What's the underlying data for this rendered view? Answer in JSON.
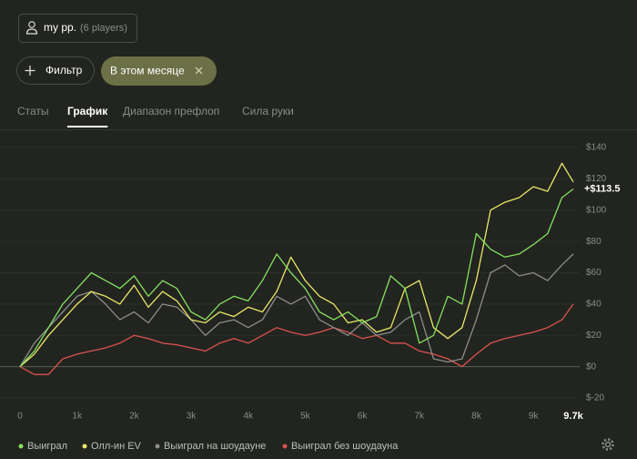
{
  "header": {
    "player": "my pp.",
    "players": "(6 players)"
  },
  "filters": {
    "add": "Фильтр",
    "chip": "В этом месяце"
  },
  "tabs": [
    "Статы",
    "График",
    "Диапазон префлоп",
    "Сила руки"
  ],
  "active_tab": 1,
  "chart_data": {
    "type": "line",
    "x": [
      0,
      250,
      500,
      750,
      1000,
      1250,
      1500,
      1750,
      2000,
      2250,
      2500,
      2750,
      3000,
      3250,
      3500,
      3750,
      4000,
      4250,
      4500,
      4750,
      5000,
      5250,
      5500,
      5750,
      6000,
      6250,
      6500,
      6750,
      7000,
      7250,
      7500,
      7750,
      8000,
      8250,
      8500,
      8750,
      9000,
      9250,
      9500,
      9700
    ],
    "series": [
      {
        "name": "Выиграл",
        "color": "#86e062",
        "values": [
          0,
          10,
          25,
          40,
          50,
          60,
          55,
          50,
          58,
          45,
          55,
          50,
          35,
          30,
          40,
          45,
          42,
          55,
          72,
          60,
          50,
          35,
          30,
          35,
          28,
          32,
          58,
          50,
          15,
          20,
          45,
          40,
          85,
          75,
          70,
          72,
          78,
          85,
          108,
          113.5
        ]
      },
      {
        "name": "Олл-ин EV",
        "color": "#e9e86a",
        "values": [
          0,
          8,
          20,
          30,
          40,
          48,
          45,
          40,
          52,
          38,
          48,
          42,
          30,
          28,
          35,
          32,
          38,
          35,
          48,
          70,
          55,
          45,
          40,
          28,
          30,
          22,
          25,
          50,
          55,
          25,
          18,
          25,
          55,
          100,
          105,
          108,
          115,
          112,
          130,
          118
        ]
      },
      {
        "name": "Выиграл на шоудауне",
        "color": "#8c8c8c",
        "values": [
          0,
          15,
          25,
          35,
          45,
          48,
          40,
          30,
          35,
          28,
          40,
          38,
          30,
          20,
          28,
          30,
          25,
          30,
          45,
          40,
          45,
          30,
          25,
          20,
          28,
          20,
          22,
          30,
          35,
          5,
          3,
          5,
          30,
          60,
          65,
          58,
          60,
          55,
          65,
          72
        ]
      },
      {
        "name": "Выиграл без шоудауна",
        "color": "#d9534f",
        "values": [
          0,
          -5,
          -5,
          5,
          8,
          10,
          12,
          15,
          20,
          18,
          15,
          14,
          12,
          10,
          15,
          18,
          15,
          20,
          25,
          22,
          20,
          22,
          25,
          22,
          18,
          20,
          15,
          15,
          10,
          8,
          5,
          0,
          8,
          15,
          18,
          20,
          22,
          25,
          30,
          40
        ]
      }
    ],
    "annotation": "+$113.5",
    "xlim": [
      0,
      9700
    ],
    "ylim": [
      -25,
      150
    ],
    "xticks": [
      0,
      {
        "value": 1000,
        "label": "1k"
      },
      {
        "value": 2000,
        "label": "2k"
      },
      {
        "value": 3000,
        "label": "3k"
      },
      {
        "value": 4000,
        "label": "4k"
      },
      {
        "value": 5000,
        "label": "5k"
      },
      {
        "value": 6000,
        "label": "6k"
      },
      {
        "value": 7000,
        "label": "7k"
      },
      {
        "value": 8000,
        "label": "8k"
      },
      {
        "value": 9000,
        "label": "9k"
      },
      {
        "value": 9700,
        "label": "9.7k"
      }
    ],
    "yticks": [
      {
        "value": 140,
        "label": "$140"
      },
      {
        "value": 120,
        "label": "$120"
      },
      {
        "value": 100,
        "label": "$100"
      },
      {
        "value": 80,
        "label": "$80"
      },
      {
        "value": 60,
        "label": "$60"
      },
      {
        "value": 40,
        "label": "$40"
      },
      {
        "value": 20,
        "label": "$20"
      },
      {
        "value": 0,
        "label": "$0"
      },
      {
        "value": -20,
        "label": "$-20"
      }
    ],
    "grid": true
  }
}
